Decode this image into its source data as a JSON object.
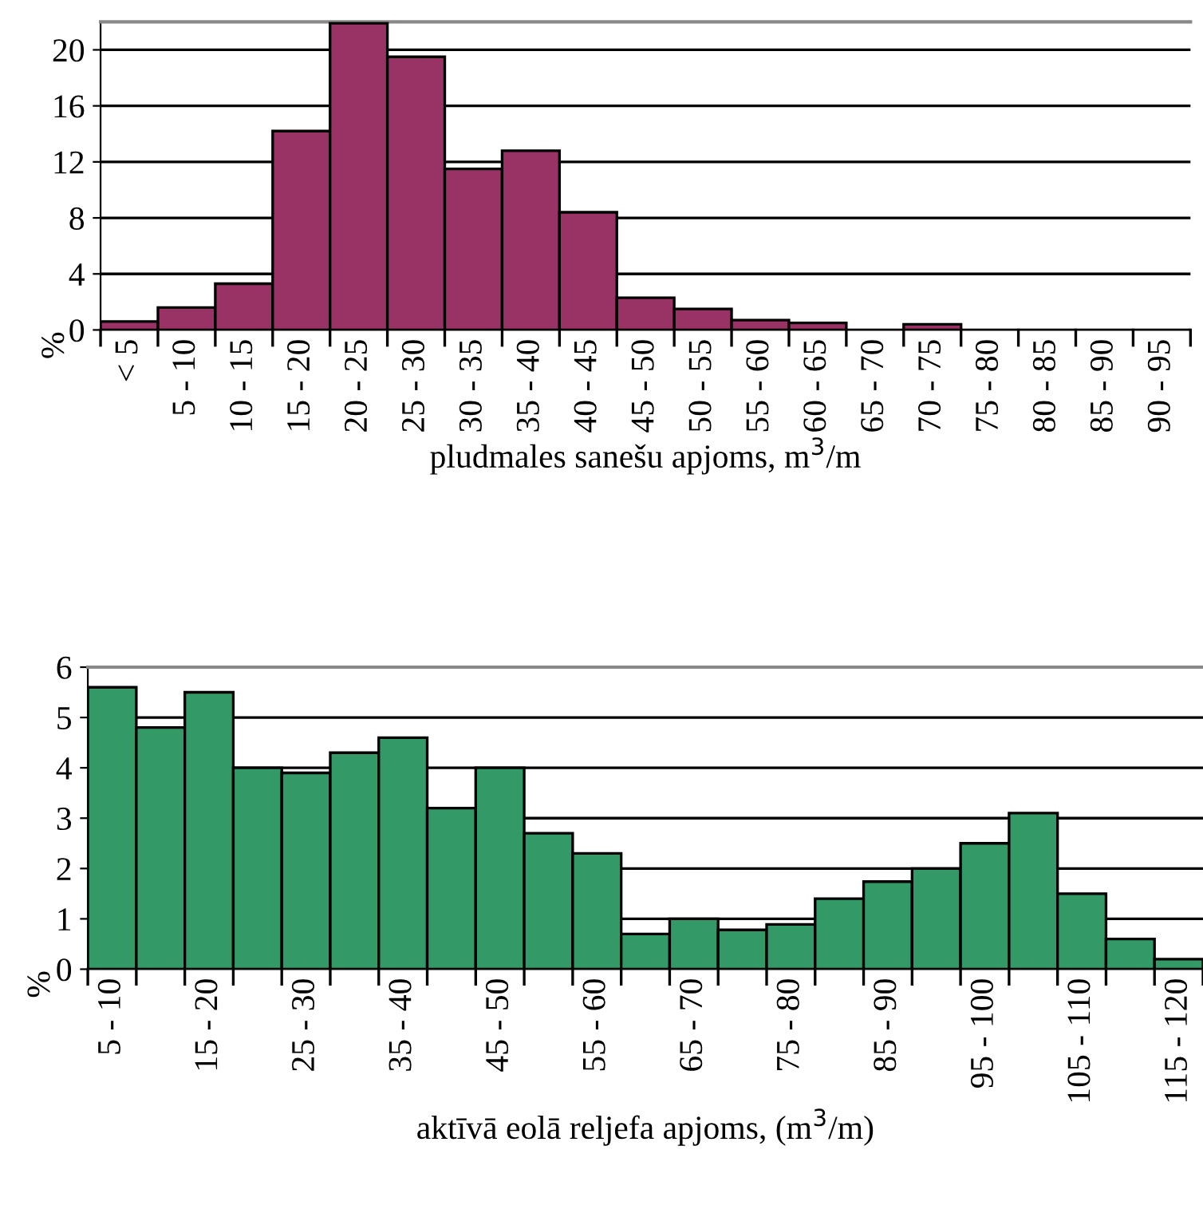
{
  "chart_data": [
    {
      "type": "bar",
      "xlabel": "pludmales sanešu apjoms, m$^{3}$/m",
      "ylabel": "%",
      "categories": [
        "< 5",
        "5 - 10",
        "10 - 15",
        "15 - 20",
        "20 - 25",
        "25 - 30",
        "30 - 35",
        "35 - 40",
        "40 - 45",
        "45 - 50",
        "50 - 55",
        "55 - 60",
        "60 - 65",
        "65 - 70",
        "70 - 75",
        "75 - 80",
        "80 - 85",
        "85 - 90",
        "90 - 95"
      ],
      "values": [
        0.6,
        1.6,
        3.3,
        14.2,
        21.9,
        19.5,
        11.5,
        12.8,
        8.4,
        2.3,
        1.5,
        0.7,
        0.5,
        null,
        0.4,
        null,
        null,
        null,
        null
      ],
      "color": "#993366",
      "ylim": [
        0,
        22
      ],
      "yticks": [
        0,
        4,
        8,
        12,
        16,
        20
      ],
      "grid": "y"
    },
    {
      "type": "bar",
      "xlabel": "aktīvā eolā reljefa apjoms, (m$^{3}$/m)",
      "ylabel": "%",
      "categories": [
        "5 - 10",
        null,
        "15 - 20",
        null,
        "25 - 30",
        null,
        "35 - 40",
        null,
        "45 - 50",
        null,
        "55 - 60",
        null,
        "65 - 70",
        null,
        "75 - 80",
        null,
        "85 - 90",
        null,
        "95 - 100",
        null,
        "105 - 110",
        null,
        "115 - 120"
      ],
      "values": [
        5.6,
        4.8,
        5.5,
        4.0,
        3.9,
        4.3,
        4.6,
        3.2,
        4.0,
        2.7,
        2.3,
        0.7,
        1.0,
        0.78,
        0.89,
        1.4,
        1.74,
        2.0,
        2.5,
        3.1,
        1.5,
        0.6,
        0.2
      ],
      "color": "#339966",
      "ylim": [
        0,
        6
      ],
      "yticks": [
        0,
        1,
        2,
        3,
        4,
        5,
        6
      ],
      "grid": "y"
    }
  ]
}
